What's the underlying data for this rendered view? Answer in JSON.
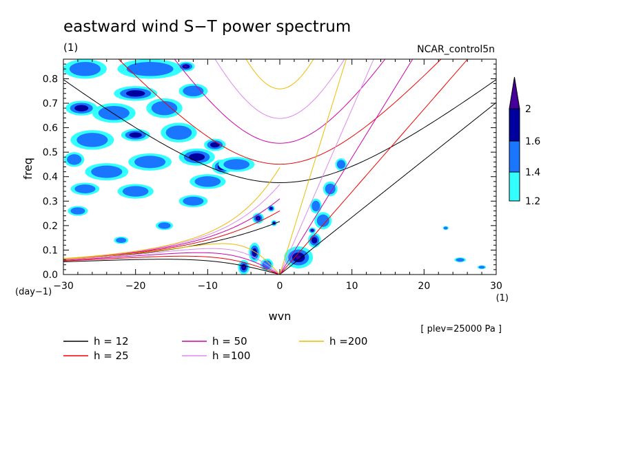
{
  "chart_data": {
    "type": "heatmap",
    "title": "eastward wind S−T power spectrum",
    "subtitle": "(1)",
    "experiment": "NCAR_control5n",
    "xlabel": "wvn",
    "xunit": "(1)",
    "ylabel": "freq",
    "yunit": "(day−1)",
    "xlim": [
      -30,
      30
    ],
    "ylim": [
      0,
      0.88
    ],
    "x_ticks": [
      -30,
      -20,
      -10,
      0,
      10,
      20,
      30
    ],
    "x_tick_labels": [
      "−30",
      "−20",
      "−10",
      "0",
      "10",
      "20",
      "30"
    ],
    "y_ticks": [
      0,
      0.1,
      0.2,
      0.3,
      0.4,
      0.5,
      0.6,
      0.7,
      0.8
    ],
    "y_tick_labels": [
      "0.0",
      "0.1",
      "0.2",
      "0.3",
      "0.4",
      "0.5",
      "0.6",
      "0.7",
      "0.8"
    ],
    "plev_note": "[ plev=25000 Pa ]",
    "colorbar": {
      "levels": [
        1.2,
        1.4,
        1.6,
        2
      ],
      "labels": [
        "1.2",
        "1.4",
        "1.6",
        "2"
      ],
      "colors": [
        "#33ffff",
        "#1a75ff",
        "#00009e",
        "#440099"
      ]
    },
    "dispersion_curves": [
      {
        "label": "h = 12",
        "h": 12,
        "color": "#000000"
      },
      {
        "label": "h = 25",
        "h": 25,
        "color": "#ee0000"
      },
      {
        "label": "h = 50",
        "h": 50,
        "color": "#cc00aa"
      },
      {
        "label": "h =100",
        "h": 100,
        "color": "#dd88ee"
      },
      {
        "label": "h =200",
        "h": 200,
        "color": "#eebb00"
      }
    ],
    "spectral_blobs": [
      {
        "k": -27,
        "f": 0.84,
        "rk": 3.0,
        "rf": 0.04,
        "level": 1
      },
      {
        "k": -18,
        "f": 0.84,
        "rk": 4.5,
        "rf": 0.04,
        "level": 1
      },
      {
        "k": -13,
        "f": 0.85,
        "rk": 1.2,
        "rf": 0.02,
        "level": 3
      },
      {
        "k": -20,
        "f": 0.74,
        "rk": 3.0,
        "rf": 0.03,
        "level": 2
      },
      {
        "k": -27.5,
        "f": 0.68,
        "rk": 2.2,
        "rf": 0.03,
        "level": 2
      },
      {
        "k": -23,
        "f": 0.66,
        "rk": 3.0,
        "rf": 0.04,
        "level": 1
      },
      {
        "k": -16,
        "f": 0.68,
        "rk": 2.5,
        "rf": 0.04,
        "level": 1
      },
      {
        "k": -12,
        "f": 0.75,
        "rk": 2.0,
        "rf": 0.03,
        "level": 1
      },
      {
        "k": -26,
        "f": 0.55,
        "rk": 3.0,
        "rf": 0.04,
        "level": 1
      },
      {
        "k": -20,
        "f": 0.57,
        "rk": 2.0,
        "rf": 0.025,
        "level": 2
      },
      {
        "k": -14,
        "f": 0.58,
        "rk": 2.5,
        "rf": 0.04,
        "level": 1
      },
      {
        "k": -11.5,
        "f": 0.48,
        "rk": 2.5,
        "rf": 0.035,
        "level": 2
      },
      {
        "k": -9,
        "f": 0.53,
        "rk": 1.5,
        "rf": 0.025,
        "level": 2
      },
      {
        "k": -8,
        "f": 0.44,
        "rk": 1.4,
        "rf": 0.03,
        "level": 3
      },
      {
        "k": -18,
        "f": 0.46,
        "rk": 3.0,
        "rf": 0.035,
        "level": 1
      },
      {
        "k": -6,
        "f": 0.45,
        "rk": 2.5,
        "rf": 0.03,
        "level": 1
      },
      {
        "k": -24,
        "f": 0.42,
        "rk": 3.0,
        "rf": 0.035,
        "level": 1
      },
      {
        "k": -10,
        "f": 0.38,
        "rk": 2.5,
        "rf": 0.03,
        "level": 1
      },
      {
        "k": -28.5,
        "f": 0.47,
        "rk": 1.4,
        "rf": 0.03,
        "level": 1
      },
      {
        "k": -27,
        "f": 0.35,
        "rk": 2.0,
        "rf": 0.025,
        "level": 1
      },
      {
        "k": -20,
        "f": 0.34,
        "rk": 2.5,
        "rf": 0.03,
        "level": 1
      },
      {
        "k": -12,
        "f": 0.3,
        "rk": 2.0,
        "rf": 0.025,
        "level": 1
      },
      {
        "k": -28,
        "f": 0.26,
        "rk": 1.4,
        "rf": 0.02,
        "level": 1
      },
      {
        "k": -16,
        "f": 0.2,
        "rk": 1.2,
        "rf": 0.018,
        "level": 1
      },
      {
        "k": -22,
        "f": 0.14,
        "rk": 1.0,
        "rf": 0.015,
        "level": 1
      },
      {
        "k": -3,
        "f": 0.23,
        "rk": 0.8,
        "rf": 0.022,
        "level": 3
      },
      {
        "k": -1.2,
        "f": 0.27,
        "rk": 0.5,
        "rf": 0.013,
        "level": 2
      },
      {
        "k": -0.8,
        "f": 0.21,
        "rk": 0.4,
        "rf": 0.012,
        "level": 2
      },
      {
        "k": -5,
        "f": 0.03,
        "rk": 0.8,
        "rf": 0.03,
        "level": 3
      },
      {
        "k": -3.5,
        "f": 0.09,
        "rk": 0.8,
        "rf": 0.04,
        "level": 2
      },
      {
        "k": -1.8,
        "f": 0.04,
        "rk": 0.9,
        "rf": 0.025,
        "level": 1
      },
      {
        "k": 2.6,
        "f": 0.07,
        "rk": 2.0,
        "rf": 0.045,
        "level": 3
      },
      {
        "k": 4.8,
        "f": 0.14,
        "rk": 0.9,
        "rf": 0.03,
        "level": 2
      },
      {
        "k": 6,
        "f": 0.22,
        "rk": 1.2,
        "rf": 0.035,
        "level": 1
      },
      {
        "k": 5,
        "f": 0.28,
        "rk": 0.8,
        "rf": 0.03,
        "level": 1
      },
      {
        "k": 7,
        "f": 0.35,
        "rk": 1.0,
        "rf": 0.03,
        "level": 1
      },
      {
        "k": 8.5,
        "f": 0.45,
        "rk": 0.8,
        "rf": 0.025,
        "level": 1
      },
      {
        "k": 4.5,
        "f": 0.18,
        "rk": 0.5,
        "rf": 0.012,
        "level": 3
      },
      {
        "k": 25,
        "f": 0.06,
        "rk": 0.8,
        "rf": 0.01,
        "level": 1
      },
      {
        "k": 28,
        "f": 0.03,
        "rk": 0.6,
        "rf": 0.008,
        "level": 1
      },
      {
        "k": 23,
        "f": 0.19,
        "rk": 0.4,
        "rf": 0.008,
        "level": 1
      }
    ]
  }
}
